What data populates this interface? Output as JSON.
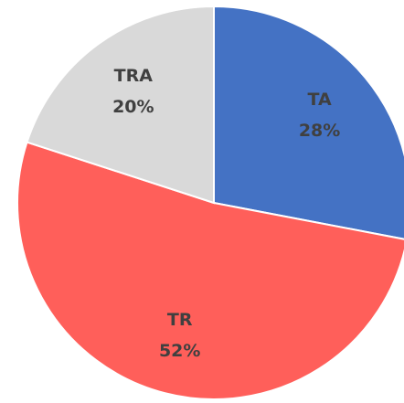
{
  "chart_data": {
    "type": "pie",
    "categories": [
      "TA",
      "TR",
      "TRA"
    ],
    "values": [
      28,
      52,
      20
    ],
    "value_labels": [
      "28%",
      "52%",
      "20%"
    ],
    "colors": [
      "#4472c4",
      "#ff5f5a",
      "#d9d9d9"
    ]
  }
}
